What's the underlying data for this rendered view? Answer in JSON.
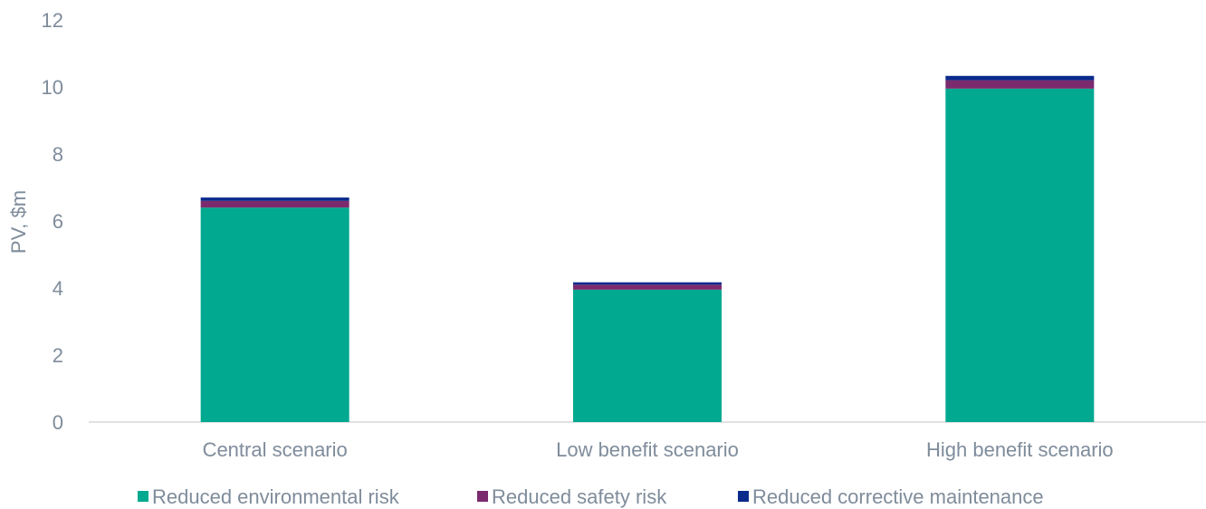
{
  "chart_data": {
    "type": "bar",
    "stacked": true,
    "categories": [
      "Central scenario",
      "Low benefit scenario",
      "High benefit scenario"
    ],
    "series": [
      {
        "name": "Reduced environmental risk",
        "color": "#00a98f",
        "values": [
          6.4,
          3.95,
          9.95
        ]
      },
      {
        "name": "Reduced safety risk",
        "color": "#7b2a6e",
        "values": [
          0.2,
          0.15,
          0.25
        ]
      },
      {
        "name": "Reduced corrective maintenance",
        "color": "#0a2a8c",
        "values": [
          0.1,
          0.07,
          0.13
        ]
      }
    ],
    "ylabel": "PV, $m",
    "ylim": [
      0,
      12
    ],
    "yticks": [
      0,
      2,
      4,
      6,
      8,
      10,
      12
    ],
    "grid": false,
    "legend": "bottom"
  }
}
